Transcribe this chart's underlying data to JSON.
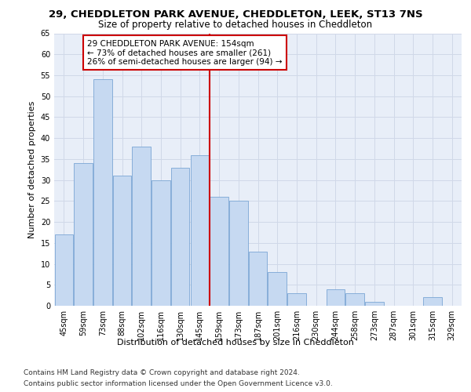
{
  "title_line1": "29, CHEDDLETON PARK AVENUE, CHEDDLETON, LEEK, ST13 7NS",
  "title_line2": "Size of property relative to detached houses in Cheddleton",
  "xlabel": "Distribution of detached houses by size in Cheddleton",
  "ylabel": "Number of detached properties",
  "categories": [
    "45sqm",
    "59sqm",
    "73sqm",
    "88sqm",
    "102sqm",
    "116sqm",
    "130sqm",
    "145sqm",
    "159sqm",
    "173sqm",
    "187sqm",
    "201sqm",
    "216sqm",
    "230sqm",
    "244sqm",
    "258sqm",
    "273sqm",
    "287sqm",
    "301sqm",
    "315sqm",
    "329sqm"
  ],
  "values": [
    17,
    34,
    54,
    31,
    38,
    30,
    33,
    36,
    26,
    25,
    13,
    8,
    3,
    0,
    4,
    3,
    1,
    0,
    0,
    2,
    0
  ],
  "bar_color": "#c6d9f1",
  "bar_edge_color": "#7aa6d4",
  "reference_line_color": "#cc0000",
  "reference_line_index": 7.5,
  "annotation_text": "29 CHEDDLETON PARK AVENUE: 154sqm\n← 73% of detached houses are smaller (261)\n26% of semi-detached houses are larger (94) →",
  "annotation_box_color": "#ffffff",
  "annotation_box_edge": "#cc0000",
  "ylim": [
    0,
    65
  ],
  "yticks": [
    0,
    5,
    10,
    15,
    20,
    25,
    30,
    35,
    40,
    45,
    50,
    55,
    60,
    65
  ],
  "grid_color": "#d0d8e8",
  "bg_color": "#e8eef8",
  "footer_line1": "Contains HM Land Registry data © Crown copyright and database right 2024.",
  "footer_line2": "Contains public sector information licensed under the Open Government Licence v3.0.",
  "title_fontsize": 9.5,
  "subtitle_fontsize": 8.5,
  "label_fontsize": 8,
  "tick_fontsize": 7,
  "annotation_fontsize": 7.5,
  "footer_fontsize": 6.5
}
